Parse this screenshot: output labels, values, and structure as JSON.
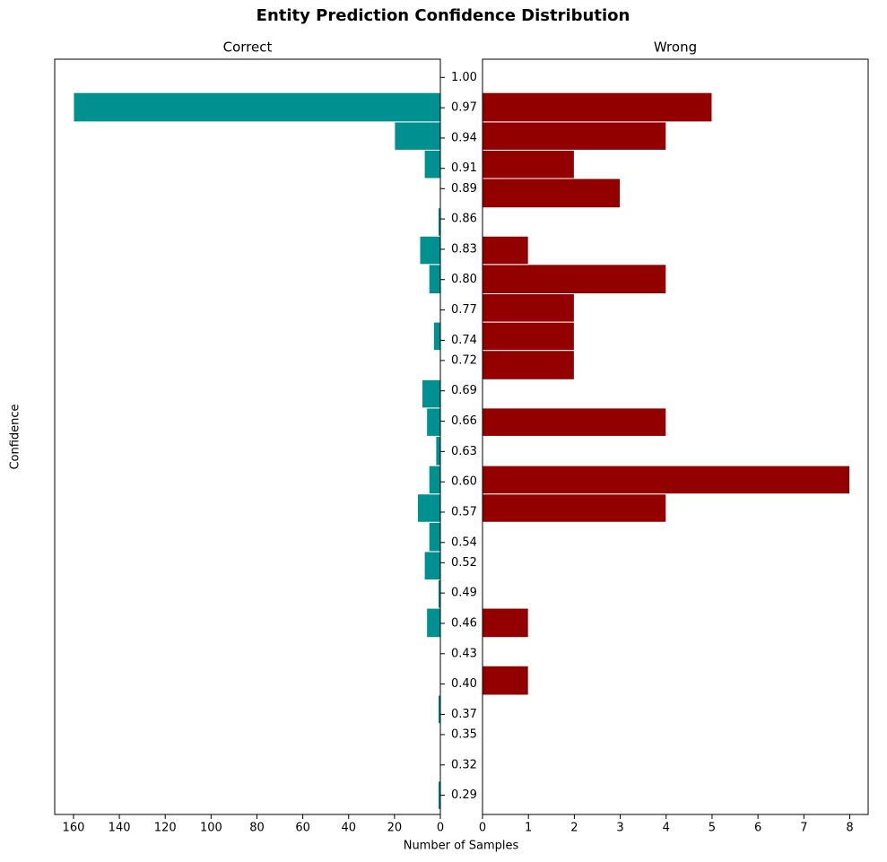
{
  "title": "Entity Prediction Confidence Distribution",
  "x_label": "Number of Samples",
  "y_label": "Confidence",
  "chart_data": [
    {
      "type": "histogram",
      "subtitle": "Correct",
      "orientation": "horizontal",
      "color": "#009090",
      "bins": [
        0.276,
        0.304,
        0.333,
        0.361,
        0.389,
        0.418,
        0.446,
        0.475,
        0.503,
        0.531,
        0.56,
        0.588,
        0.616,
        0.645,
        0.673,
        0.701,
        0.73,
        0.758,
        0.786,
        0.815,
        0.843,
        0.871,
        0.9,
        0.928,
        0.956,
        0.985
      ],
      "values": [
        1,
        0,
        0,
        1,
        0,
        0,
        6,
        1,
        7,
        5,
        10,
        5,
        2,
        6,
        8,
        0,
        3,
        0,
        5,
        9,
        1,
        0,
        7,
        20,
        160
      ],
      "xlim": [
        168.2,
        0
      ],
      "xticks": [
        160,
        140,
        120,
        100,
        80,
        60,
        40,
        20,
        0
      ],
      "ylim": [
        0.271,
        1.018
      ],
      "yticks": [
        {
          "value": 1.0,
          "label": "1.00"
        },
        0.97,
        0.94,
        0.91,
        0.89,
        0.86,
        0.83,
        {
          "value": 0.8,
          "label": "0.80"
        },
        0.77,
        0.74,
        0.72,
        0.69,
        0.66,
        0.63,
        {
          "value": 0.6,
          "label": "0.60"
        },
        0.57,
        0.54,
        0.52,
        0.49,
        0.46,
        0.43,
        {
          "value": 0.4,
          "label": "0.40"
        },
        0.37,
        0.35,
        0.32,
        0.29
      ]
    },
    {
      "type": "histogram",
      "subtitle": "Wrong",
      "orientation": "horizontal",
      "color": "#930000",
      "bins": [
        0.276,
        0.304,
        0.333,
        0.361,
        0.389,
        0.418,
        0.446,
        0.475,
        0.503,
        0.531,
        0.56,
        0.588,
        0.616,
        0.645,
        0.673,
        0.701,
        0.73,
        0.758,
        0.786,
        0.815,
        0.843,
        0.871,
        0.9,
        0.928,
        0.956,
        0.985
      ],
      "values": [
        0,
        0,
        0,
        0,
        1,
        0,
        1,
        0,
        0,
        0,
        4,
        8,
        0,
        4,
        0,
        2,
        2,
        2,
        4,
        1,
        0,
        3,
        2,
        4,
        5
      ],
      "xlim": [
        0,
        8.4
      ],
      "xticks": [
        0,
        1,
        2,
        3,
        4,
        5,
        6,
        7,
        8
      ],
      "ylim": [
        0.271,
        1.018
      ]
    }
  ]
}
